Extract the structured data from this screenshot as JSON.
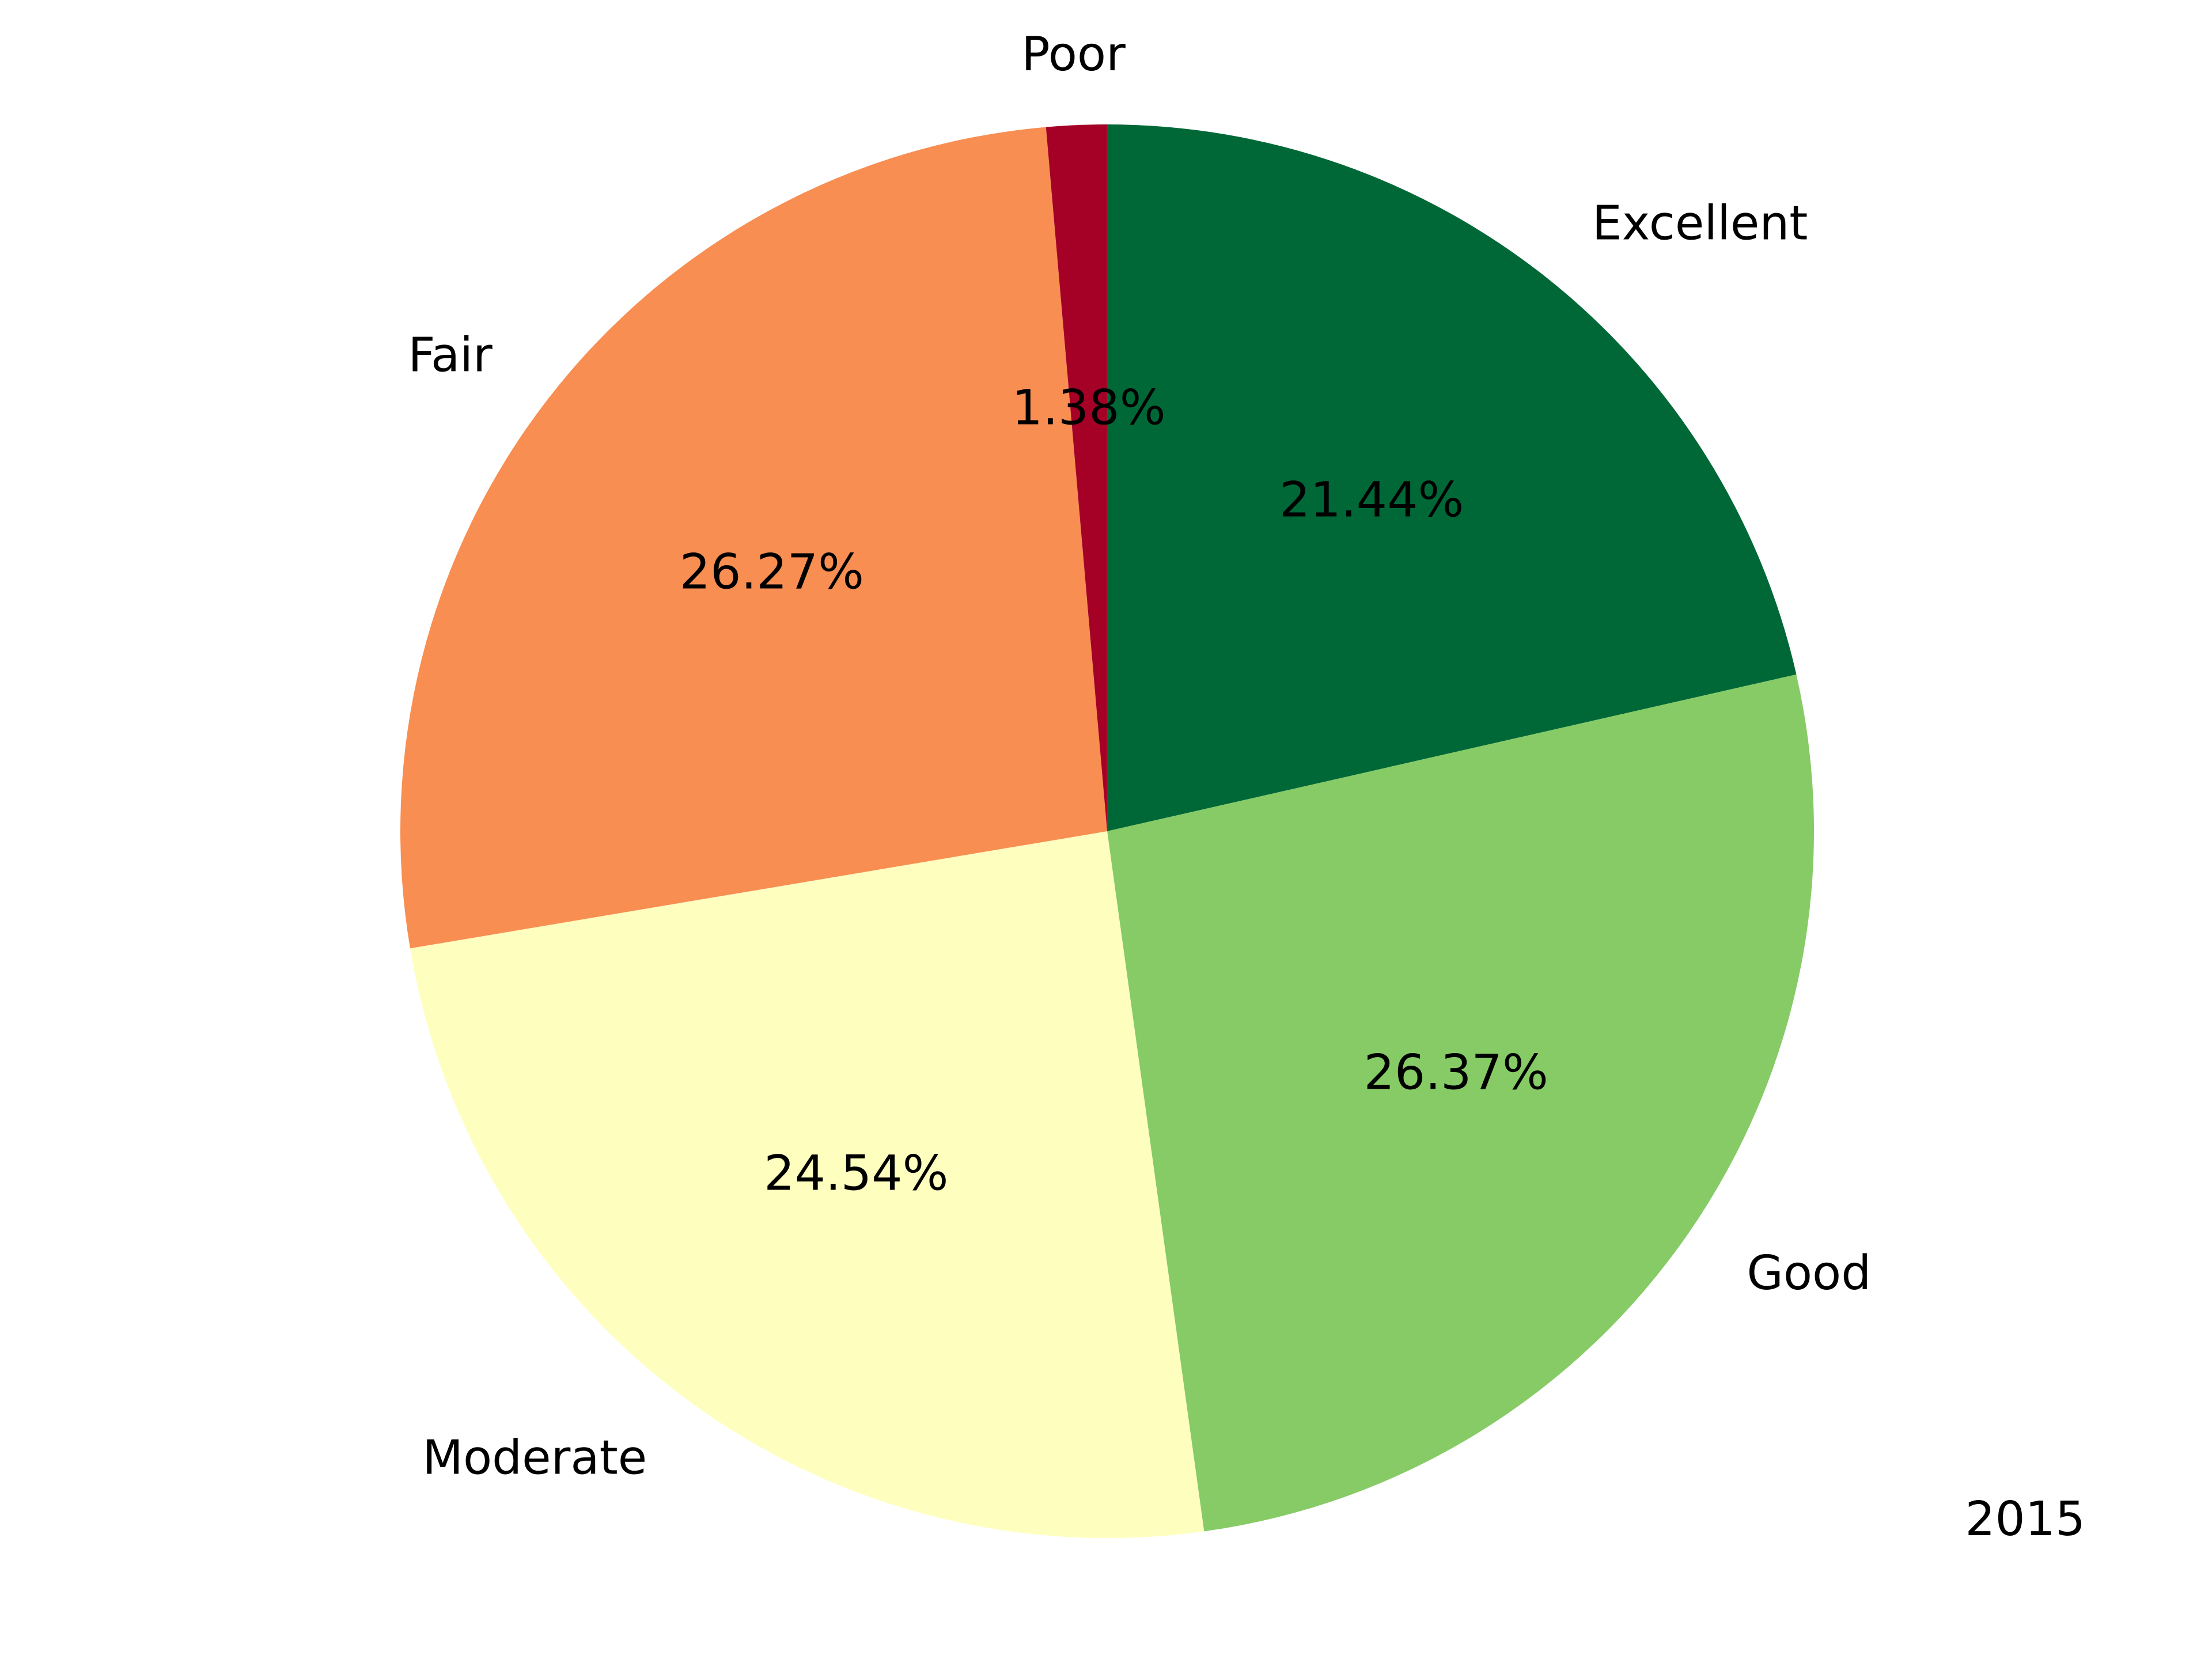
{
  "chart_data": {
    "type": "pie",
    "year_label": "2015",
    "slices": [
      {
        "label": "Excellent",
        "value": 21.44,
        "pct_label": "21.44%",
        "color": "#006837"
      },
      {
        "label": "Good",
        "value": 26.37,
        "pct_label": "26.37%",
        "color": "#86cb66"
      },
      {
        "label": "Moderate",
        "value": 24.54,
        "pct_label": "24.54%",
        "color": "#feffbe"
      },
      {
        "label": "Fair",
        "value": 26.27,
        "pct_label": "26.27%",
        "color": "#f88e52"
      },
      {
        "label": "Poor",
        "value": 1.38,
        "pct_label": "1.38%",
        "color": "#a50026"
      }
    ],
    "start": "top",
    "direction": "clockwise",
    "legend": "none"
  }
}
